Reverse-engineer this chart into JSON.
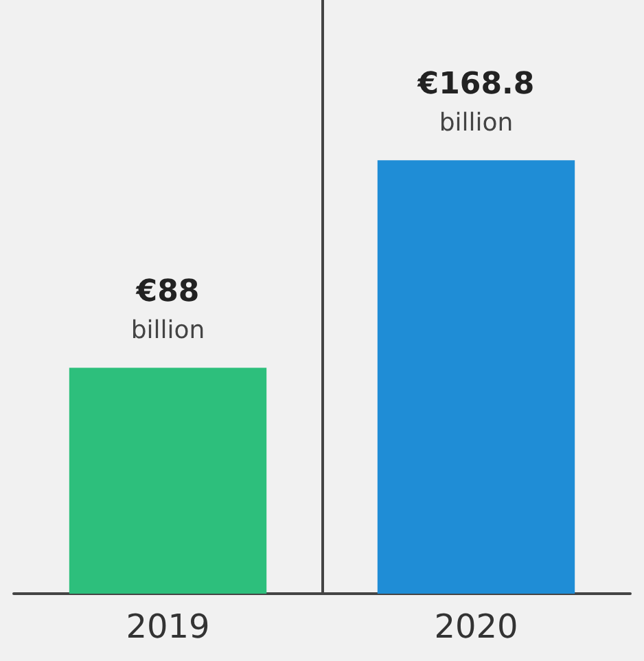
{
  "chart_data": {
    "type": "bar",
    "categories": [
      "2019",
      "2020"
    ],
    "values": [
      88,
      168.8
    ],
    "colors": [
      "#2dbf7c",
      "#1f8dd6"
    ],
    "value_labels": [
      "€88 billion",
      "€168.8 billion"
    ],
    "grid": "x"
  }
}
